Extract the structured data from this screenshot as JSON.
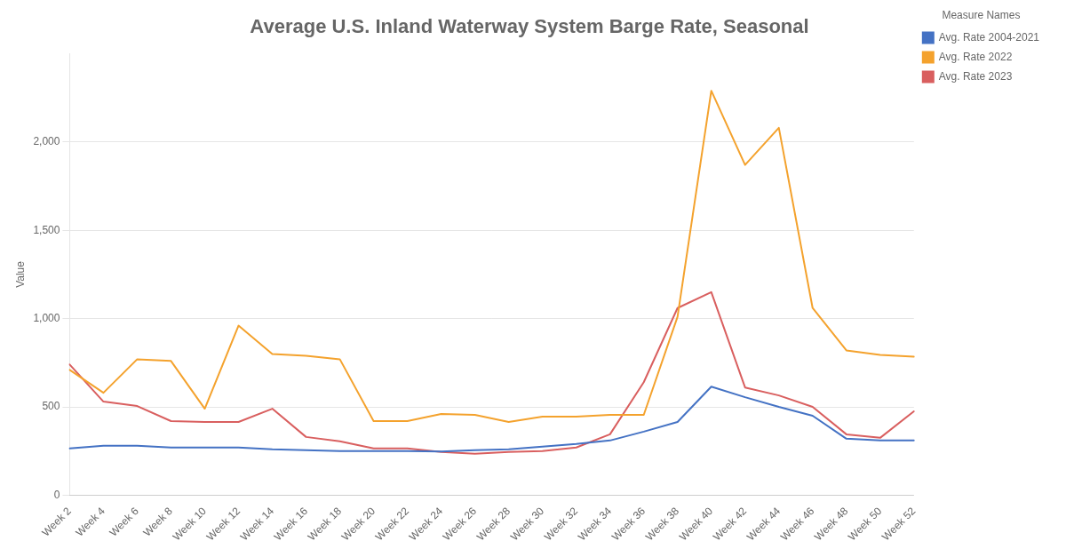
{
  "chart_data": {
    "type": "line",
    "title": "Average U.S. Inland Waterway System Barge Rate, Seasonal",
    "ylabel": "Value",
    "legend_title": "Measure Names",
    "categories": [
      "Week 2",
      "Week 4",
      "Week 6",
      "Week 8",
      "Week 10",
      "Week 12",
      "Week 14",
      "Week 16",
      "Week 18",
      "Week 20",
      "Week 22",
      "Week 24",
      "Week 26",
      "Week 28",
      "Week 30",
      "Week 32",
      "Week 34",
      "Week 36",
      "Week 38",
      "Week 40",
      "Week 42",
      "Week 44",
      "Week 46",
      "Week 48",
      "Week 50",
      "Week 52"
    ],
    "series": [
      {
        "name": "Avg. Rate 2004-2021",
        "color": "#4472c4",
        "values": [
          265,
          280,
          280,
          270,
          270,
          270,
          260,
          255,
          250,
          250,
          250,
          248,
          255,
          260,
          275,
          290,
          310,
          360,
          415,
          615,
          555,
          500,
          450,
          320,
          310,
          310
        ]
      },
      {
        "name": "Avg. Rate 2022",
        "color": "#f4a22d",
        "values": [
          710,
          580,
          770,
          760,
          490,
          960,
          800,
          790,
          770,
          420,
          420,
          460,
          455,
          415,
          445,
          445,
          455,
          455,
          1010,
          2290,
          1870,
          2080,
          1060,
          820,
          795,
          785
        ]
      },
      {
        "name": "Avg. Rate 2023",
        "color": "#d95f5f",
        "values": [
          740,
          530,
          505,
          420,
          415,
          415,
          490,
          330,
          305,
          265,
          265,
          245,
          235,
          245,
          250,
          270,
          345,
          640,
          1060,
          1150,
          610,
          565,
          500,
          345,
          325,
          475
        ]
      }
    ],
    "ylim": [
      0,
      2500
    ],
    "yticks": [
      0,
      500,
      {
        "value": 1000,
        "label": "1,000"
      },
      {
        "value": 1500,
        "label": "1,500"
      },
      {
        "value": 2000,
        "label": "2,000"
      }
    ],
    "grid": true,
    "legend": "upper right"
  }
}
